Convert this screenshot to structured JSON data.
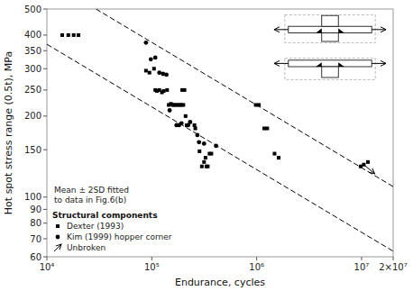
{
  "chart_data": {
    "type": "scatter",
    "xlabel": "Endurance, cycles",
    "ylabel": "Hot spot stress range (0.5t), MPa",
    "log": true,
    "grid": false,
    "legend": "lower left",
    "legend_title": "Structural components",
    "annotation": "Mean ± 2SD fitted\nto data in Fig.6(b)",
    "xlim": [
      10000,
      20000000
    ],
    "ylim": [
      60,
      500
    ],
    "xticks": [
      {
        "value": 10000,
        "label": "10⁴"
      },
      {
        "value": 100000,
        "label": "10⁵"
      },
      {
        "value": 1000000,
        "label": "10⁶"
      },
      {
        "value": 10000000,
        "label": "10⁷"
      },
      {
        "value": 20000000,
        "label": "2×10⁷"
      }
    ],
    "yticks": [
      60,
      70,
      80,
      90,
      100,
      150,
      200,
      250,
      300,
      350,
      400,
      500
    ],
    "series": [
      {
        "name": "Dexter (1993)",
        "type": "scatter",
        "marker": "square",
        "color": "black",
        "x": [
          14000,
          16000,
          18000,
          20000,
          88000,
          95000,
          105000,
          108000,
          112000,
          118000,
          125000,
          130000,
          140000,
          145000,
          152000,
          158000,
          163000,
          170000,
          178000,
          185000,
          192000,
          200000,
          210000,
          215000,
          255000,
          260000,
          195000,
          205000,
          285000,
          300000,
          315000,
          325000,
          332000,
          342000,
          355000,
          370000,
          980000,
          1050000,
          1180000,
          1260000,
          1480000,
          1620000,
          9800000,
          11500000
        ],
        "values": [
          400,
          400,
          400,
          400,
          295,
          290,
          300,
          250,
          248,
          250,
          245,
          248,
          250,
          220,
          222,
          220,
          220,
          220,
          220,
          220,
          220,
          220,
          200,
          185,
          185,
          180,
          250,
          250,
          148,
          130,
          135,
          140,
          130,
          130,
          145,
          145,
          220,
          220,
          180,
          180,
          145,
          140,
          130,
          135
        ]
      },
      {
        "name": "Kim (1999) hopper corner",
        "type": "scatter",
        "marker": "circle",
        "color": "black",
        "x": [
          88000,
          98000,
          108000,
          118000,
          128000,
          138000,
          148000,
          172000,
          182000,
          192000,
          222000,
          232000,
          272000,
          282000,
          315000,
          410000
        ],
        "values": [
          375,
          325,
          330,
          290,
          287,
          285,
          210,
          185,
          185,
          188,
          185,
          190,
          170,
          160,
          158,
          155
        ]
      },
      {
        "name": "Unbroken",
        "type": "scatter",
        "marker": "square-arrow",
        "color": "black",
        "x": [
          10500000
        ],
        "values": [
          132
        ]
      },
      {
        "type": "line",
        "line_style": "dashed",
        "color": "black",
        "x": [
          29372,
          20000000
        ],
        "values": [
          500,
          109.36
        ]
      },
      {
        "type": "line",
        "line_style": "dashed",
        "color": "black",
        "x": [
          10000,
          20000000
        ],
        "values": [
          369.83,
          62.93
        ]
      }
    ]
  }
}
